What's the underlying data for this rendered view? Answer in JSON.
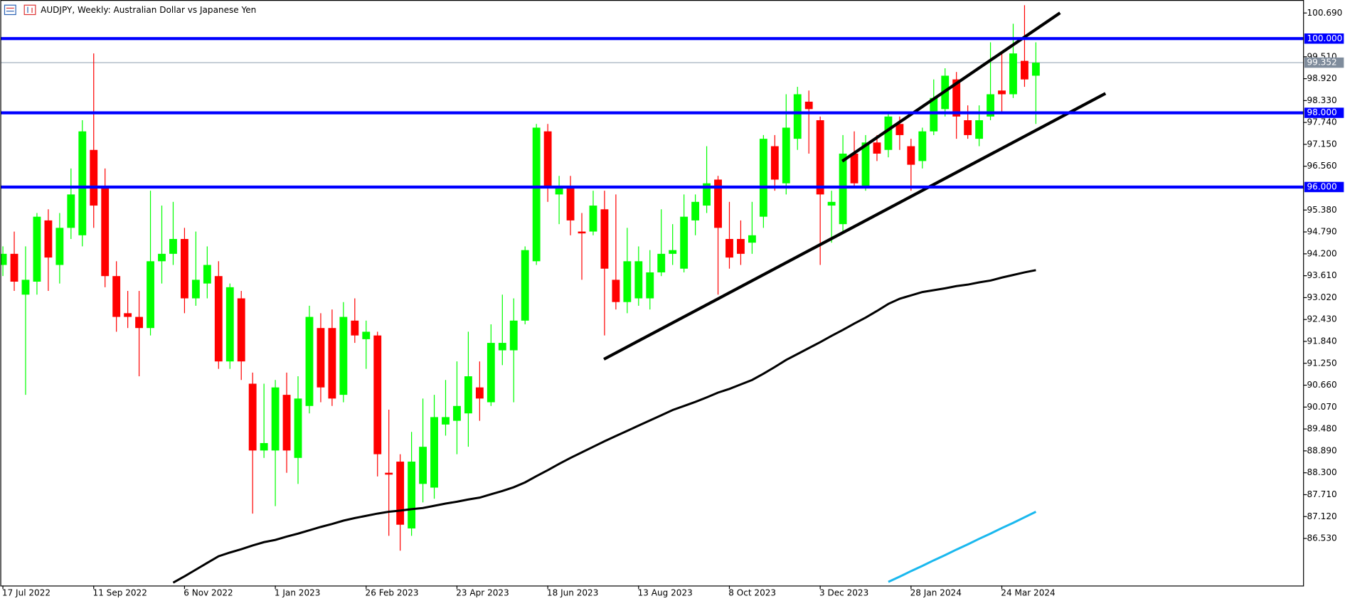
{
  "chart_data": {
    "type": "candlestick",
    "title": "AUDJPY, Weekly:  Australian Dollar vs Japanese Yen",
    "categories": [
      "17 Jul 2022",
      null,
      null,
      null,
      null,
      null,
      null,
      null,
      "11 Sep 2022",
      null,
      null,
      null,
      null,
      null,
      null,
      null,
      "6 Nov 2022",
      null,
      null,
      null,
      null,
      null,
      null,
      null,
      "1 Jan 2023",
      null,
      null,
      null,
      null,
      null,
      null,
      null,
      "26 Feb 2023",
      null,
      null,
      null,
      null,
      null,
      null,
      null,
      "23 Apr 2023",
      null,
      null,
      null,
      null,
      null,
      null,
      null,
      "18 Jun 2023",
      null,
      null,
      null,
      null,
      null,
      null,
      null,
      "13 Aug 2023",
      null,
      null,
      null,
      null,
      null,
      null,
      null,
      "8 Oct 2023",
      null,
      null,
      null,
      null,
      null,
      null,
      null,
      "3 Dec 2023",
      null,
      null,
      null,
      null,
      null,
      null,
      null,
      "28 Jan 2024",
      null,
      null,
      null,
      null,
      null,
      null,
      null,
      "24 Mar 2024",
      null,
      null,
      null
    ],
    "open": [
      93.9,
      94.2,
      93.1,
      93.45,
      95.1,
      93.9,
      94.9,
      94.7,
      97.0,
      96.0,
      93.6,
      92.6,
      92.5,
      92.2,
      94.0,
      94.2,
      94.6,
      93.0,
      93.4,
      93.6,
      91.3,
      93.0,
      90.7,
      88.9,
      88.9,
      90.4,
      88.7,
      90.1,
      92.2,
      92.2,
      90.4,
      92.4,
      91.9,
      92.0,
      88.3,
      88.6,
      86.8,
      88.0,
      87.9,
      89.6,
      89.7,
      89.9,
      90.6,
      90.2,
      91.6,
      91.6,
      92.4,
      94.0,
      97.5,
      95.8,
      96.0,
      94.8,
      94.8,
      95.4,
      93.5,
      92.9,
      93.0,
      93.0,
      93.7,
      94.2,
      93.8,
      95.1,
      95.5,
      96.2,
      94.6,
      94.6,
      94.5,
      95.2,
      97.1,
      96.1,
      97.3,
      98.3,
      97.8,
      95.5,
      95.0,
      96.9,
      96.0,
      97.2,
      97.0,
      97.7,
      97.1,
      96.7,
      97.5,
      98.1,
      98.9,
      97.8,
      97.3,
      97.9,
      98.6,
      98.5,
      99.4,
      99.0
    ],
    "high": [
      94.4,
      94.8,
      94.4,
      95.3,
      95.4,
      95.3,
      96.5,
      97.8,
      99.6,
      96.5,
      94.0,
      93.2,
      93.2,
      95.9,
      95.5,
      95.6,
      94.9,
      94.8,
      94.4,
      94.0,
      93.4,
      93.2,
      91.0,
      90.7,
      90.8,
      91.0,
      90.9,
      92.8,
      92.6,
      92.7,
      92.9,
      93.0,
      92.4,
      92.1,
      90.0,
      88.8,
      89.4,
      90.3,
      90.4,
      90.8,
      91.3,
      92.1,
      91.3,
      92.3,
      93.1,
      93.0,
      94.4,
      97.7,
      97.7,
      96.3,
      96.3,
      95.3,
      95.9,
      95.9,
      95.8,
      94.9,
      94.4,
      94.3,
      95.4,
      95.0,
      95.8,
      95.8,
      97.1,
      96.3,
      95.6,
      95.1,
      95.6,
      97.4,
      97.4,
      98.5,
      98.7,
      98.6,
      97.9,
      95.9,
      97.4,
      97.5,
      97.4,
      97.4,
      98.0,
      97.9,
      97.3,
      97.6,
      98.9,
      99.2,
      99.1,
      98.2,
      98.2,
      99.9,
      99.6,
      100.4,
      100.9,
      99.9
    ],
    "low": [
      93.6,
      93.2,
      90.4,
      93.1,
      93.2,
      93.4,
      94.6,
      94.4,
      94.9,
      93.3,
      92.1,
      92.2,
      90.9,
      92.0,
      93.4,
      93.9,
      92.6,
      92.8,
      93.0,
      91.1,
      91.1,
      90.8,
      87.2,
      88.7,
      87.4,
      88.3,
      88.0,
      89.9,
      90.2,
      90.1,
      90.2,
      91.8,
      91.1,
      88.2,
      86.6,
      86.2,
      86.6,
      87.5,
      87.6,
      89.3,
      88.8,
      89.0,
      89.7,
      90.1,
      91.2,
      90.2,
      92.3,
      93.9,
      95.6,
      95.0,
      94.7,
      93.5,
      94.7,
      92.0,
      92.7,
      92.6,
      92.8,
      92.7,
      93.6,
      93.9,
      93.7,
      94.7,
      95.3,
      93.1,
      93.8,
      93.9,
      94.2,
      94.9,
      95.9,
      95.8,
      97.0,
      96.9,
      93.9,
      94.5,
      94.8,
      96.0,
      95.9,
      96.7,
      96.8,
      97.0,
      95.9,
      96.5,
      97.4,
      97.9,
      97.3,
      97.3,
      97.1,
      97.8,
      98.0,
      98.4,
      98.7,
      97.7
    ],
    "close": [
      94.2,
      93.45,
      93.5,
      95.2,
      94.1,
      94.9,
      95.8,
      97.5,
      95.5,
      93.6,
      92.5,
      92.5,
      92.2,
      94.0,
      94.2,
      94.6,
      93.0,
      93.5,
      93.9,
      91.3,
      93.3,
      91.3,
      88.9,
      89.1,
      90.6,
      88.9,
      90.3,
      92.5,
      90.6,
      90.3,
      92.5,
      92.0,
      92.1,
      88.8,
      88.25,
      86.9,
      88.6,
      89.0,
      89.8,
      89.8,
      90.1,
      90.9,
      90.3,
      91.8,
      91.8,
      92.4,
      94.3,
      97.6,
      96.0,
      96.0,
      95.1,
      94.75,
      95.5,
      93.8,
      92.9,
      94.0,
      94.0,
      93.7,
      94.2,
      94.3,
      95.2,
      95.6,
      96.1,
      94.9,
      94.1,
      94.2,
      94.7,
      97.3,
      96.2,
      97.6,
      98.5,
      98.1,
      95.8,
      95.6,
      96.9,
      96.1,
      97.2,
      96.9,
      97.9,
      97.4,
      96.6,
      97.5,
      98.4,
      99.0,
      97.9,
      97.4,
      97.8,
      98.5,
      98.5,
      99.6,
      98.9,
      99.35
    ],
    "up_color": "#00ff00",
    "down_color": "#ff0000",
    "moving_averages": [
      {
        "color": "#000000",
        "values": [
          null,
          null,
          null,
          null,
          null,
          null,
          null,
          null,
          null,
          null,
          null,
          null,
          null,
          null,
          null,
          85.34,
          85.51,
          85.69,
          85.87,
          86.05,
          86.15,
          86.24,
          86.34,
          86.43,
          86.49,
          86.58,
          86.66,
          86.75,
          86.84,
          86.92,
          87.01,
          87.08,
          87.14,
          87.2,
          87.25,
          87.28,
          87.32,
          87.35,
          87.41,
          87.47,
          87.52,
          87.58,
          87.63,
          87.72,
          87.81,
          87.91,
          88.04,
          88.21,
          88.37,
          88.54,
          88.7,
          88.85,
          89.0,
          89.15,
          89.29,
          89.43,
          89.57,
          89.71,
          89.85,
          89.99,
          90.1,
          90.21,
          90.33,
          90.46,
          90.56,
          90.68,
          90.8,
          90.97,
          91.15,
          91.34,
          91.5,
          91.66,
          91.82,
          91.99,
          92.15,
          92.32,
          92.48,
          92.66,
          92.85,
          92.99,
          93.08,
          93.17,
          93.22,
          93.27,
          93.33,
          93.37,
          93.43,
          93.48,
          93.56,
          93.63,
          93.7,
          93.76
        ]
      },
      {
        "color": "#1ab8ee",
        "values": [
          null,
          null,
          null,
          null,
          null,
          null,
          null,
          null,
          null,
          null,
          null,
          null,
          null,
          null,
          null,
          null,
          null,
          null,
          null,
          null,
          null,
          null,
          null,
          null,
          null,
          null,
          null,
          null,
          null,
          null,
          null,
          null,
          null,
          null,
          null,
          null,
          null,
          null,
          null,
          null,
          null,
          null,
          null,
          null,
          null,
          null,
          null,
          null,
          null,
          null,
          null,
          null,
          null,
          null,
          null,
          null,
          null,
          null,
          null,
          null,
          null,
          null,
          null,
          null,
          null,
          null,
          null,
          null,
          null,
          null,
          null,
          null,
          null,
          null,
          null,
          null,
          null,
          null,
          85.36,
          85.5,
          85.65,
          85.79,
          85.94,
          86.08,
          86.23,
          86.37,
          86.52,
          86.66,
          86.81,
          86.95,
          87.1,
          87.25
        ]
      }
    ],
    "levels": [
      {
        "value": 100,
        "label": "100.000"
      },
      {
        "value": 98,
        "label": "98.000"
      },
      {
        "value": 96,
        "label": "96.000"
      }
    ],
    "level_color": "#0000ff",
    "last_price": 99.352,
    "ylim": [
      85.26,
      101.04
    ],
    "yticks": [
      {
        "value": 100.69,
        "label": "100.690"
      },
      {
        "value": 99.51,
        "label": "99.510"
      },
      {
        "value": 98.92,
        "label": "98.920"
      },
      {
        "value": 98.33,
        "label": "98.330"
      },
      {
        "value": 97.74,
        "label": "97.740"
      },
      {
        "value": 97.15,
        "label": "97.150"
      },
      {
        "value": 96.56,
        "label": "96.560"
      },
      {
        "value": 95.38,
        "label": "95.380"
      },
      {
        "value": 94.79,
        "label": "94.790"
      },
      {
        "value": 94.2,
        "label": "94.200"
      },
      {
        "value": 93.61,
        "label": "93.610"
      },
      {
        "value": 93.02,
        "label": "93.020"
      },
      {
        "value": 92.43,
        "label": "92.430"
      },
      {
        "value": 91.84,
        "label": "91.840"
      },
      {
        "value": 91.25,
        "label": "91.250"
      },
      {
        "value": 90.66,
        "label": "90.660"
      },
      {
        "value": 90.07,
        "label": "90.070"
      },
      {
        "value": 89.48,
        "label": "89.480"
      },
      {
        "value": 88.89,
        "label": "88.890"
      },
      {
        "value": 88.3,
        "label": "88.300"
      },
      {
        "value": 87.71,
        "label": "87.710"
      },
      {
        "value": 87.12,
        "label": "87.120"
      },
      {
        "value": 86.53,
        "label": "86.530"
      }
    ]
  }
}
